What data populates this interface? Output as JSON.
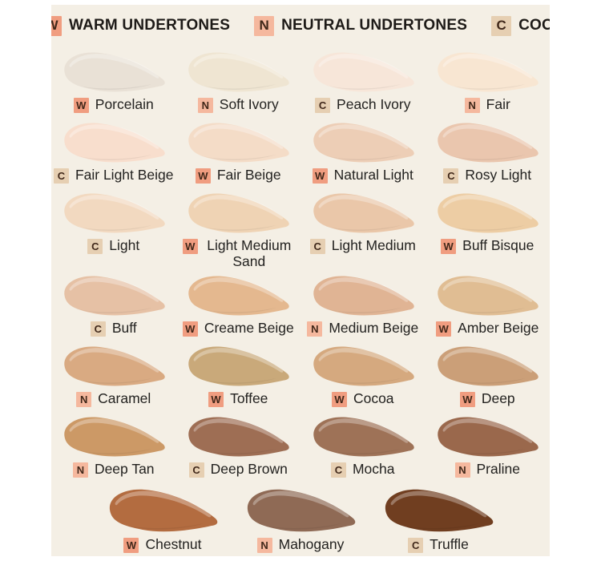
{
  "palette": {
    "background": "#ffffff",
    "canvas_background": "#f4efe5",
    "header_text_color": "#1d1a17",
    "label_text_color": "#232220",
    "badge_letter_color": "#40281a",
    "undertone_badge_colors": {
      "W": "#f09d80",
      "N": "#f5b89e",
      "C": "#e6cfb2"
    }
  },
  "legend": {
    "items": [
      {
        "code": "W",
        "label": "WARM UNDERTONES"
      },
      {
        "code": "N",
        "label": "NEUTRAL UNDERTONES"
      },
      {
        "code": "C",
        "label": "COOL UNDERTONES"
      }
    ]
  },
  "grid_rows": [
    [
      {
        "code": "W",
        "name": "Porcelain",
        "color": "#e9e1d6"
      },
      {
        "code": "N",
        "name": "Soft Ivory",
        "color": "#efe5d2"
      },
      {
        "code": "C",
        "name": "Peach Ivory",
        "color": "#f7e6d9"
      },
      {
        "code": "N",
        "name": "Fair",
        "color": "#f8e6d2"
      }
    ],
    [
      {
        "code": "C",
        "name": "Fair Light Beige",
        "color": "#f8decd"
      },
      {
        "code": "W",
        "name": "Fair Beige",
        "color": "#f4dcc7"
      },
      {
        "code": "W",
        "name": "Natural Light",
        "color": "#edceb6"
      },
      {
        "code": "C",
        "name": "Rosy Light",
        "color": "#eac6ae"
      }
    ],
    [
      {
        "code": "C",
        "name": "Light",
        "color": "#f2d9c0"
      },
      {
        "code": "W",
        "name": "Light Medium Sand",
        "color": "#efd3b4",
        "two_line": true
      },
      {
        "code": "C",
        "name": "Light Medium",
        "color": "#eac7a9"
      },
      {
        "code": "W",
        "name": "Buff Bisque",
        "color": "#edcda4"
      }
    ],
    [
      {
        "code": "C",
        "name": "Buff",
        "color": "#e6c1a5"
      },
      {
        "code": "W",
        "name": "Creame Beige",
        "color": "#e4b88f"
      },
      {
        "code": "N",
        "name": "Medium Beige",
        "color": "#e0b494"
      },
      {
        "code": "W",
        "name": "Amber Beige",
        "color": "#e0bd93"
      }
    ],
    [
      {
        "code": "N",
        "name": "Caramel",
        "color": "#d9aa82"
      },
      {
        "code": "W",
        "name": "Toffee",
        "color": "#c9a97a"
      },
      {
        "code": "W",
        "name": "Cocoa",
        "color": "#d5a97f"
      },
      {
        "code": "W",
        "name": "Deep",
        "color": "#cb9f78"
      }
    ],
    [
      {
        "code": "N",
        "name": "Deep Tan",
        "color": "#cc9966"
      },
      {
        "code": "C",
        "name": "Deep Brown",
        "color": "#9e6e54"
      },
      {
        "code": "C",
        "name": "Mocha",
        "color": "#9e7257"
      },
      {
        "code": "N",
        "name": "Praline",
        "color": "#9a684c"
      }
    ]
  ],
  "bottom_row": [
    {
      "code": "W",
      "name": "Chestnut",
      "color": "#b36c40"
    },
    {
      "code": "N",
      "name": "Mahogany",
      "color": "#8f6a55"
    },
    {
      "code": "C",
      "name": "Truffle",
      "color": "#703e20"
    }
  ]
}
